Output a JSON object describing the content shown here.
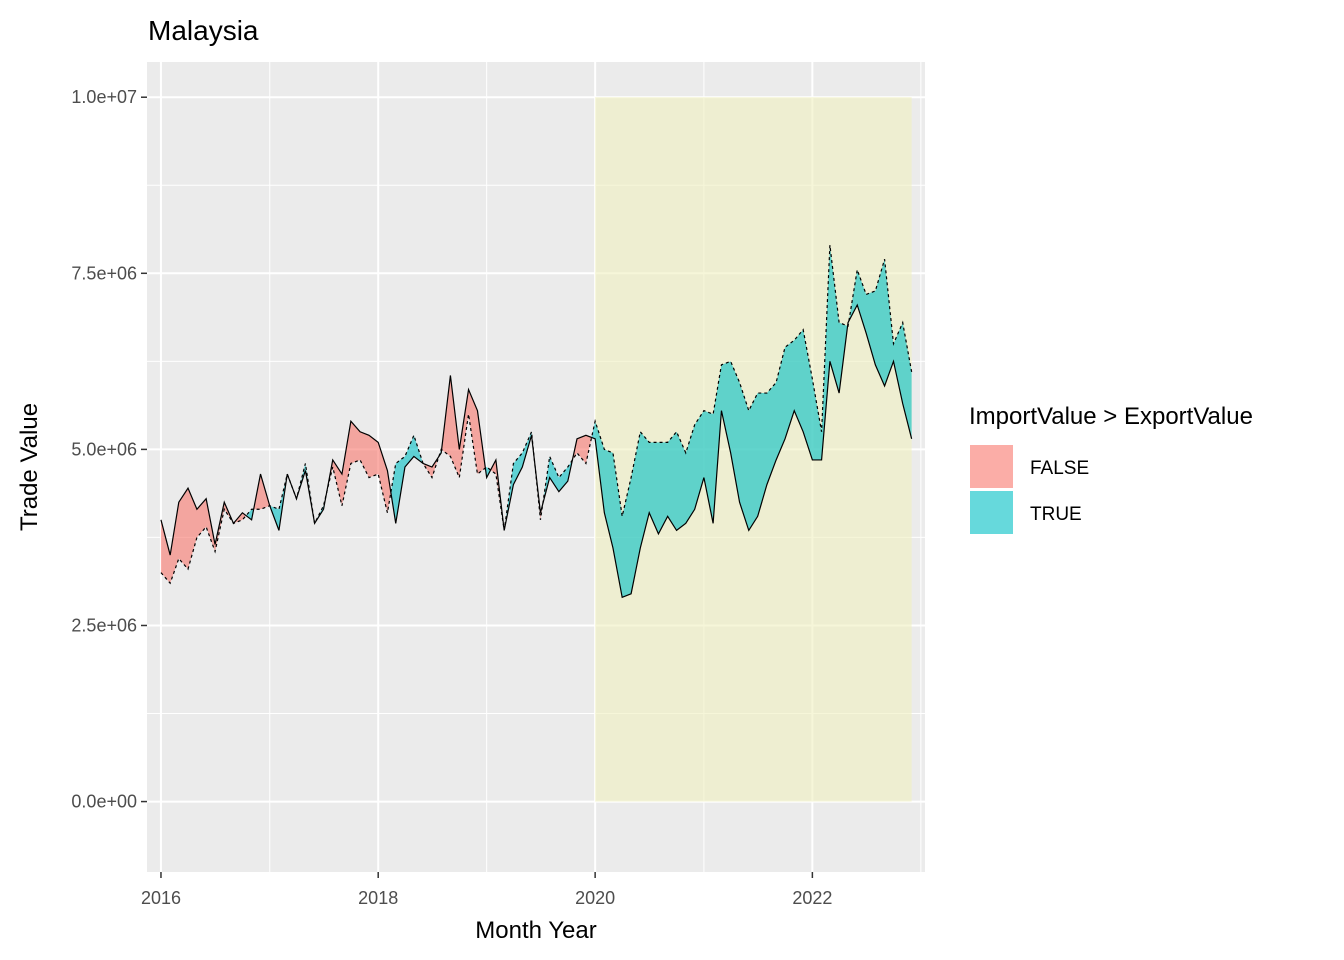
{
  "chart_data": {
    "type": "area",
    "title": "Malaysia",
    "xlabel": "Month Year",
    "ylabel": "Trade Value",
    "xlim": [
      "2015-11-15",
      "2023-01-15"
    ],
    "ylim": [
      -1000000,
      10500000
    ],
    "x_ticks": [
      {
        "date": "2016-01-01",
        "label": "2016"
      },
      {
        "date": "2018-01-01",
        "label": "2018"
      },
      {
        "date": "2020-01-01",
        "label": "2020"
      },
      {
        "date": "2022-01-01",
        "label": "2022"
      }
    ],
    "x_minor_ticks": [
      "2017-01-01",
      "2019-01-01",
      "2021-01-01",
      "2023-01-01"
    ],
    "y_ticks": [
      {
        "value": 0,
        "label": "0.0e+00"
      },
      {
        "value": 2500000,
        "label": "2.5e+06"
      },
      {
        "value": 5000000,
        "label": "5.0e+06"
      },
      {
        "value": 7500000,
        "label": "7.5e+06"
      },
      {
        "value": 10000000,
        "label": "1.0e+07"
      }
    ],
    "y_minor_ticks": [
      1250000,
      3750000,
      6250000,
      8750000
    ],
    "highlight": {
      "x_start": "2020-01-01",
      "x_end": "2022-12-01",
      "y_start": 0,
      "y_end": 10000000,
      "color": "#f0f0c0"
    },
    "legend": {
      "title": "ImportValue > ExportValue",
      "position": "right",
      "items": [
        {
          "label": "FALSE",
          "color": "#f8766d"
        },
        {
          "label": "TRUE",
          "color": "#00bfc4"
        }
      ]
    },
    "series": [
      {
        "name": "ExportValue",
        "line": "solid",
        "x": [
          "2016-01",
          "2016-02",
          "2016-03",
          "2016-04",
          "2016-05",
          "2016-06",
          "2016-07",
          "2016-08",
          "2016-09",
          "2016-10",
          "2016-11",
          "2016-12",
          "2017-01",
          "2017-02",
          "2017-03",
          "2017-04",
          "2017-05",
          "2017-06",
          "2017-07",
          "2017-08",
          "2017-09",
          "2017-10",
          "2017-11",
          "2017-12",
          "2018-01",
          "2018-02",
          "2018-03",
          "2018-04",
          "2018-05",
          "2018-06",
          "2018-07",
          "2018-08",
          "2018-09",
          "2018-10",
          "2018-11",
          "2018-12",
          "2019-01",
          "2019-02",
          "2019-03",
          "2019-04",
          "2019-05",
          "2019-06",
          "2019-07",
          "2019-08",
          "2019-09",
          "2019-10",
          "2019-11",
          "2019-12",
          "2020-01",
          "2020-02",
          "2020-03",
          "2020-04",
          "2020-05",
          "2020-06",
          "2020-07",
          "2020-08",
          "2020-09",
          "2020-10",
          "2020-11",
          "2020-12",
          "2021-01",
          "2021-02",
          "2021-03",
          "2021-04",
          "2021-05",
          "2021-06",
          "2021-07",
          "2021-08",
          "2021-09",
          "2021-10",
          "2021-11",
          "2021-12",
          "2022-01",
          "2022-02",
          "2022-03",
          "2022-04",
          "2022-05",
          "2022-06",
          "2022-07",
          "2022-08",
          "2022-09",
          "2022-10",
          "2022-11",
          "2022-12"
        ],
        "y": [
          4000000,
          3500000,
          4250000,
          4450000,
          4150000,
          4300000,
          3650000,
          4250000,
          3950000,
          4100000,
          4000000,
          4650000,
          4200000,
          3850000,
          4650000,
          4300000,
          4700000,
          3950000,
          4150000,
          4850000,
          4650000,
          5400000,
          5250000,
          5200000,
          5100000,
          4700000,
          3950000,
          4750000,
          4900000,
          4800000,
          4750000,
          4950000,
          6050000,
          5000000,
          5850000,
          5550000,
          4600000,
          4850000,
          3850000,
          4500000,
          4750000,
          5200000,
          4100000,
          4600000,
          4400000,
          4550000,
          5150000,
          5200000,
          5150000,
          4100000,
          3600000,
          2900000,
          2950000,
          3600000,
          4100000,
          3800000,
          4050000,
          3850000,
          3950000,
          4150000,
          4600000,
          3950000,
          5550000,
          4950000,
          4250000,
          3850000,
          4050000,
          4500000,
          4850000,
          5150000,
          5550000,
          5250000,
          4850000,
          4850000,
          6250000,
          5800000,
          6800000,
          7050000,
          6650000,
          6200000,
          5900000,
          6250000,
          5650000,
          5150000
        ]
      },
      {
        "name": "ImportValue",
        "line": "dashed",
        "x": [
          "2016-01",
          "2016-02",
          "2016-03",
          "2016-04",
          "2016-05",
          "2016-06",
          "2016-07",
          "2016-08",
          "2016-09",
          "2016-10",
          "2016-11",
          "2016-12",
          "2017-01",
          "2017-02",
          "2017-03",
          "2017-04",
          "2017-05",
          "2017-06",
          "2017-07",
          "2017-08",
          "2017-09",
          "2017-10",
          "2017-11",
          "2017-12",
          "2018-01",
          "2018-02",
          "2018-03",
          "2018-04",
          "2018-05",
          "2018-06",
          "2018-07",
          "2018-08",
          "2018-09",
          "2018-10",
          "2018-11",
          "2018-12",
          "2019-01",
          "2019-02",
          "2019-03",
          "2019-04",
          "2019-05",
          "2019-06",
          "2019-07",
          "2019-08",
          "2019-09",
          "2019-10",
          "2019-11",
          "2019-12",
          "2020-01",
          "2020-02",
          "2020-03",
          "2020-04",
          "2020-05",
          "2020-06",
          "2020-07",
          "2020-08",
          "2020-09",
          "2020-10",
          "2020-11",
          "2020-12",
          "2021-01",
          "2021-02",
          "2021-03",
          "2021-04",
          "2021-05",
          "2021-06",
          "2021-07",
          "2021-08",
          "2021-09",
          "2021-10",
          "2021-11",
          "2021-12",
          "2022-01",
          "2022-02",
          "2022-03",
          "2022-04",
          "2022-05",
          "2022-06",
          "2022-07",
          "2022-08",
          "2022-09",
          "2022-10",
          "2022-11",
          "2022-12"
        ],
        "y": [
          3250000,
          3100000,
          3450000,
          3300000,
          3750000,
          3900000,
          3550000,
          4150000,
          3950000,
          4000000,
          4150000,
          4150000,
          4200000,
          4150000,
          4650000,
          4300000,
          4800000,
          3950000,
          4200000,
          4750000,
          4200000,
          4800000,
          4850000,
          4600000,
          4650000,
          4100000,
          4800000,
          4900000,
          5200000,
          4800000,
          4600000,
          5000000,
          4900000,
          4600000,
          5500000,
          4650000,
          4750000,
          4650000,
          3850000,
          4800000,
          4950000,
          5250000,
          4000000,
          4900000,
          4600000,
          4750000,
          4950000,
          4800000,
          5400000,
          5000000,
          4950000,
          4050000,
          4600000,
          5250000,
          5100000,
          5100000,
          5100000,
          5250000,
          4950000,
          5350000,
          5550000,
          5500000,
          6200000,
          6250000,
          5950000,
          5550000,
          5800000,
          5800000,
          5950000,
          6450000,
          6550000,
          6700000,
          6000000,
          5250000,
          7900000,
          6800000,
          6750000,
          7550000,
          7200000,
          7250000,
          7700000,
          6500000,
          6800000,
          6100000
        ]
      }
    ]
  }
}
